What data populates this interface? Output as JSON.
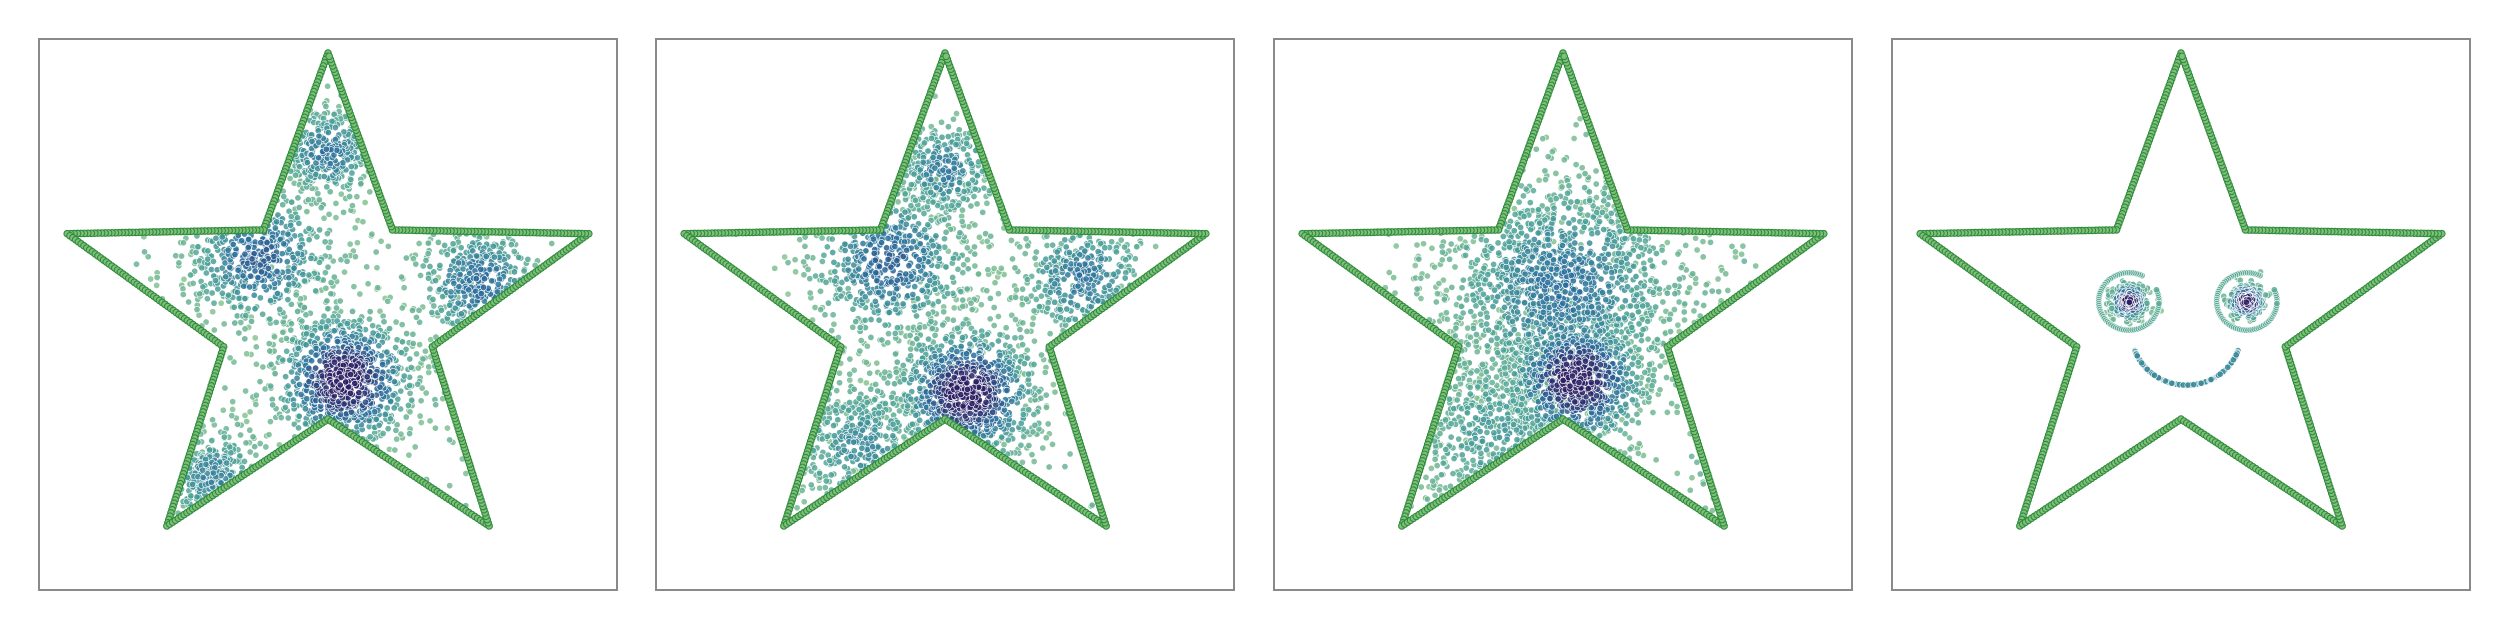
{
  "chart_data": [
    {
      "type": "scatter",
      "title": "",
      "xlim": [
        -1.05,
        1.05
      ],
      "ylim": [
        -1.05,
        1.05
      ],
      "grid": false,
      "boundary": {
        "shape": "five-pointed-star",
        "outer_radius": 1.0,
        "inner_radius": 0.4,
        "color": "#2e8b3a",
        "fill_color": "#7fbf7b"
      },
      "series": [
        {
          "colormap": "crest",
          "clusters": [
            {
              "center": [
                0.06,
                -0.25
              ],
              "spread": 0.13,
              "count": 900,
              "intensity": 1.0
            },
            {
              "center": [
                -0.25,
                0.22
              ],
              "spread": 0.14,
              "count": 500,
              "intensity": 0.65
            },
            {
              "center": [
                0.55,
                0.12
              ],
              "spread": 0.12,
              "count": 320,
              "intensity": 0.6
            },
            {
              "center": [
                0.0,
                0.62
              ],
              "spread": 0.09,
              "count": 320,
              "intensity": 0.55
            },
            {
              "center": [
                -0.42,
                -0.62
              ],
              "spread": 0.1,
              "count": 250,
              "intensity": 0.45
            }
          ],
          "noise_count": 200
        }
      ]
    },
    {
      "type": "scatter",
      "title": "",
      "xlim": [
        -1.05,
        1.05
      ],
      "ylim": [
        -1.05,
        1.05
      ],
      "grid": false,
      "boundary": {
        "shape": "five-pointed-star",
        "outer_radius": 1.0,
        "inner_radius": 0.4,
        "color": "#2e8b3a",
        "fill_color": "#7fbf7b"
      },
      "series": [
        {
          "colormap": "crest",
          "clusters": [
            {
              "center": [
                0.08,
                -0.3
              ],
              "spread": 0.13,
              "count": 900,
              "intensity": 1.0
            },
            {
              "center": [
                -0.2,
                0.2
              ],
              "spread": 0.15,
              "count": 550,
              "intensity": 0.65
            },
            {
              "center": [
                0.5,
                0.14
              ],
              "spread": 0.12,
              "count": 320,
              "intensity": 0.55
            },
            {
              "center": [
                0.0,
                0.55
              ],
              "spread": 0.1,
              "count": 300,
              "intensity": 0.5
            },
            {
              "center": [
                -0.3,
                -0.5
              ],
              "spread": 0.14,
              "count": 350,
              "intensity": 0.4
            }
          ],
          "noise_count": 250
        }
      ]
    },
    {
      "type": "scatter",
      "title": "",
      "xlim": [
        -1.05,
        1.05
      ],
      "ylim": [
        -1.05,
        1.05
      ],
      "grid": false,
      "boundary": {
        "shape": "five-pointed-star",
        "outer_radius": 1.0,
        "inner_radius": 0.4,
        "color": "#2e8b3a",
        "fill_color": "#7fbf7b"
      },
      "series": [
        {
          "colormap": "crest",
          "clusters": [
            {
              "center": [
                0.05,
                -0.25
              ],
              "spread": 0.13,
              "count": 800,
              "intensity": 1.0
            },
            {
              "center": [
                0.0,
                0.1
              ],
              "spread": 0.22,
              "count": 1400,
              "intensity": 0.55
            },
            {
              "center": [
                -0.25,
                -0.45
              ],
              "spread": 0.18,
              "count": 450,
              "intensity": 0.3
            }
          ],
          "noise_count": 250
        }
      ]
    },
    {
      "type": "scatter",
      "title": "",
      "xlim": [
        -1.05,
        1.05
      ],
      "ylim": [
        -1.05,
        1.05
      ],
      "grid": false,
      "boundary": {
        "shape": "five-pointed-star",
        "outer_radius": 1.0,
        "inner_radius": 0.4,
        "color": "#2e8b3a",
        "fill_color": "#7fbf7b"
      },
      "series": [
        {
          "colormap": "crest",
          "clusters": [
            {
              "center": [
                -0.19,
                0.05
              ],
              "spread": 0.035,
              "count": 260,
              "intensity": 1.0
            },
            {
              "center": [
                0.24,
                0.05
              ],
              "spread": 0.035,
              "count": 260,
              "intensity": 1.0
            }
          ],
          "rings": [
            {
              "center": [
                -0.19,
                0.05
              ],
              "radius": 0.11,
              "count": 90,
              "intensity": 0.25
            },
            {
              "center": [
                0.24,
                0.05
              ],
              "radius": 0.11,
              "count": 90,
              "intensity": 0.25
            }
          ],
          "arcs": [
            {
              "center": [
                0.02,
                -0.07
              ],
              "radius": 0.2,
              "from_deg": 200,
              "to_deg": 340,
              "count": 140,
              "intensity": 0.4
            }
          ],
          "noise_count": 0
        }
      ]
    }
  ]
}
